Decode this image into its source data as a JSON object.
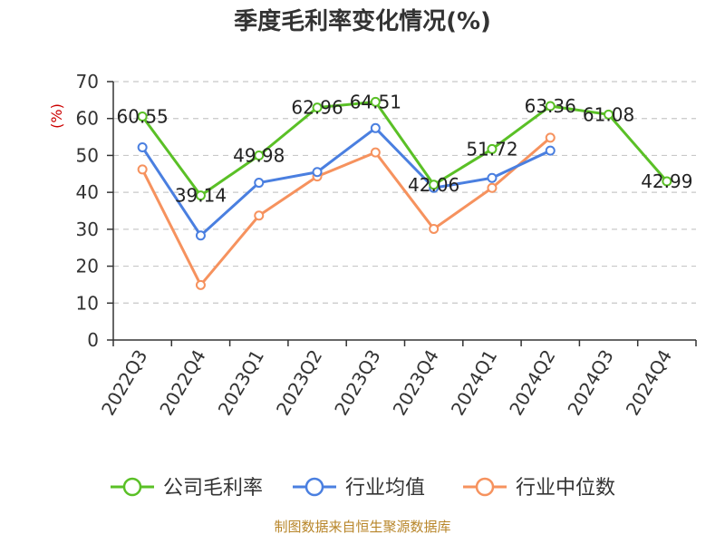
{
  "chart_data": {
    "type": "line",
    "title": "季度毛利率变化情况(%)",
    "ylabel": "(%)",
    "xlabel": "",
    "ylim": [
      0,
      70
    ],
    "yticks": [
      0,
      10,
      20,
      30,
      40,
      50,
      60,
      70
    ],
    "grid": true,
    "legend_position": "bottom",
    "categories": [
      "2022Q3",
      "2022Q4",
      "2023Q1",
      "2023Q2",
      "2023Q3",
      "2023Q4",
      "2024Q1",
      "2024Q2",
      "2024Q3",
      "2024Q4"
    ],
    "series": [
      {
        "name": "公司毛利率",
        "color": "#5ac026",
        "labeled": true,
        "values": [
          60.55,
          39.14,
          49.98,
          62.96,
          64.51,
          42.06,
          51.72,
          63.36,
          61.08,
          42.99
        ],
        "labels": [
          "60.55",
          "39.14",
          "49.98",
          "62.96",
          "64.51",
          "42.06",
          "51.72",
          "63.36",
          "61.08",
          "42.99"
        ]
      },
      {
        "name": "行业均值",
        "color": "#4a7fe0",
        "labeled": false,
        "values": [
          52.2,
          28.3,
          42.6,
          45.5,
          57.4,
          41.2,
          43.9,
          51.3,
          null,
          null
        ]
      },
      {
        "name": "行业中位数",
        "color": "#f6925e",
        "labeled": false,
        "values": [
          46.2,
          14.9,
          33.7,
          44.3,
          50.8,
          30.1,
          41.2,
          54.8,
          null,
          null
        ]
      }
    ]
  },
  "source": "制图数据来自恒生聚源数据库"
}
